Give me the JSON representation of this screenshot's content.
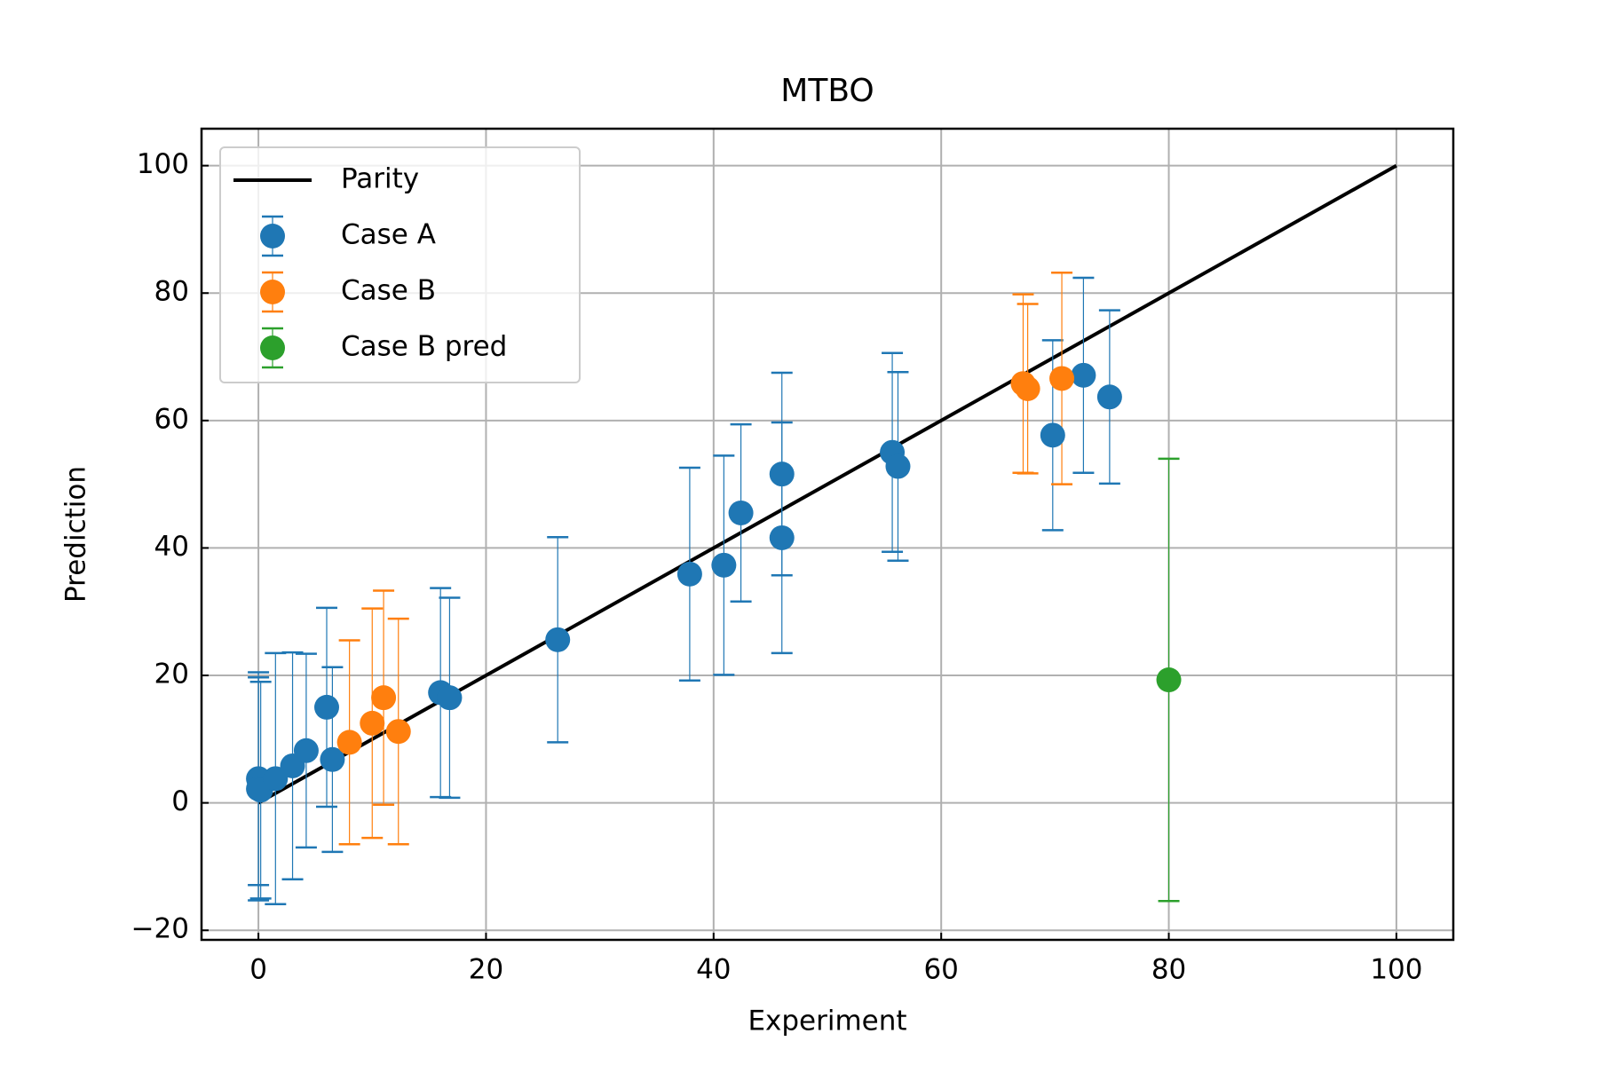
{
  "chart_data": {
    "type": "scatter",
    "title": "MTBO",
    "x_label": "Experiment",
    "y_label": "Prediction",
    "xlim": [
      -5,
      105
    ],
    "ylim": [
      -21.5,
      105.8
    ],
    "xticks": [
      0,
      20,
      40,
      60,
      80,
      100
    ],
    "yticks": [
      {
        "value": -20,
        "label": "−20"
      },
      0,
      20,
      40,
      60,
      80,
      100
    ],
    "grid": true,
    "legend": "upper left",
    "parity": {
      "name": "Parity",
      "color": "#000000",
      "x": [
        0,
        100
      ],
      "values": [
        0,
        100
      ]
    },
    "series": [
      {
        "name": "Case A",
        "color": "#1f77b4",
        "x": [
          0,
          0,
          0.2,
          1.5,
          3,
          4.2,
          6,
          6.5,
          16,
          16.8,
          26.3,
          37.9,
          40.9,
          42.4,
          46,
          46,
          55.7,
          56.2,
          69.8,
          72.5,
          74.8
        ],
        "values": [
          3.8,
          2.2,
          2.0,
          3.8,
          5.8,
          8.2,
          15,
          6.8,
          17.3,
          16.5,
          25.6,
          35.9,
          37.3,
          45.5,
          51.6,
          41.6,
          55,
          52.8,
          57.7,
          67.1,
          63.7
        ],
        "errors": [
          16.7,
          17.5,
          17.0,
          19.7,
          17.8,
          15.2,
          15.6,
          14.5,
          16.4,
          15.7,
          16.1,
          16.7,
          17.2,
          13.9,
          15.9,
          18.1,
          15.6,
          14.8,
          14.9,
          15.3,
          13.6
        ]
      },
      {
        "name": "Case B",
        "color": "#ff7f0e",
        "x": [
          8,
          10,
          11,
          12.3,
          67.2,
          67.6,
          70.6
        ],
        "values": [
          9.5,
          12.5,
          16.5,
          11.2,
          65.8,
          65.0,
          66.6
        ],
        "errors": [
          16,
          18,
          16.8,
          17.7,
          14,
          13.3,
          16.6
        ]
      },
      {
        "name": "Case B pred",
        "color": "#2ca02c",
        "x": [
          80
        ],
        "values": [
          19.3
        ],
        "errors": [
          34.7
        ]
      }
    ]
  }
}
